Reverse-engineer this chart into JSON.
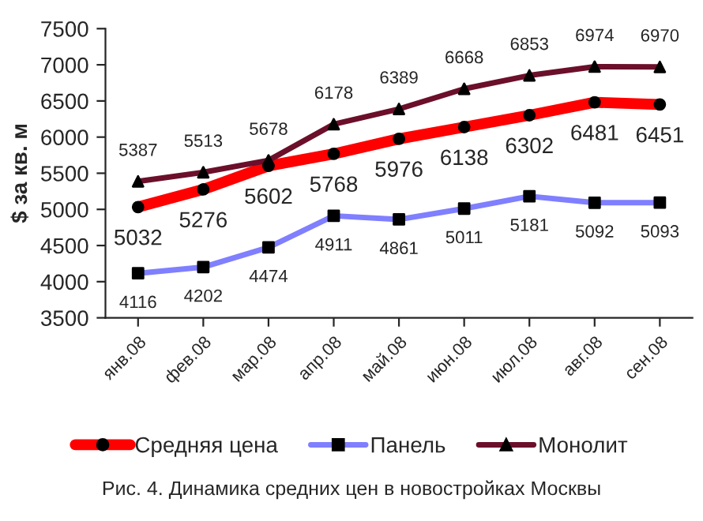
{
  "chart_data": {
    "type": "line",
    "categories": [
      "янв.08",
      "фев.08",
      "мар.08",
      "апр.08",
      "май.08",
      "июн.08",
      "июл.08",
      "авг.08",
      "сен.08"
    ],
    "ylabel": "$ за кв. м",
    "ylim": [
      3500,
      7500
    ],
    "yticks": [
      3500,
      4000,
      4500,
      5000,
      5500,
      6000,
      6500,
      7000,
      7500
    ],
    "series": [
      {
        "name": "Средняя цена",
        "color": "#ff0000",
        "marker": "circle",
        "values": [
          5032,
          5276,
          5602,
          5768,
          5976,
          6138,
          6302,
          6481,
          6451
        ]
      },
      {
        "name": "Панель",
        "color": "#7f7fff",
        "marker": "square",
        "values": [
          4116,
          4202,
          4474,
          4911,
          4861,
          5011,
          5181,
          5092,
          5093
        ]
      },
      {
        "name": "Монолит",
        "color": "#6b0f2a",
        "marker": "triangle",
        "values": [
          5387,
          5513,
          5678,
          6178,
          6389,
          6668,
          6853,
          6974,
          6970
        ]
      }
    ],
    "data_labels": true,
    "grid": false,
    "legend": "bottom",
    "line_style": "solid",
    "annotations": [
      "Рис. 4. Динамика средних цен в новостройках Москвы"
    ]
  }
}
